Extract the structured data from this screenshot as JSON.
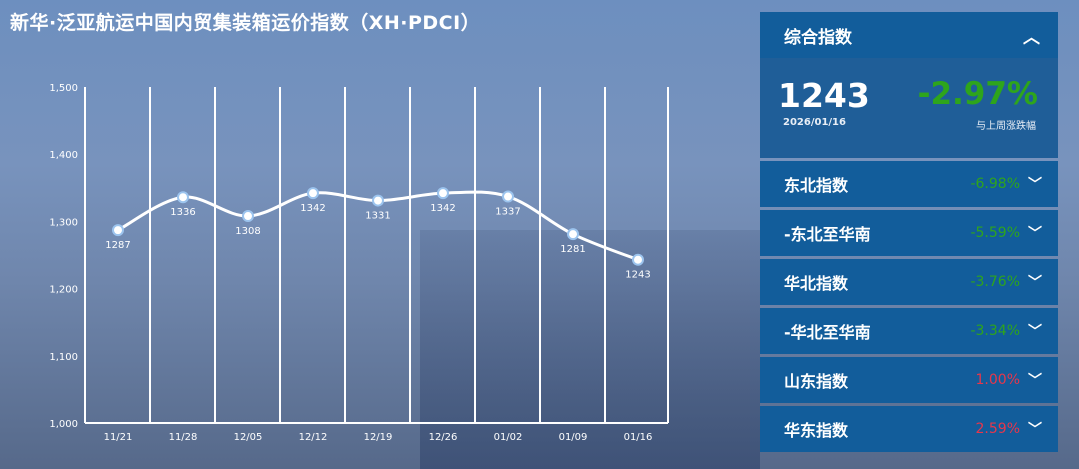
{
  "title": "新华·泛亚航运中国内贸集装箱运价指数（XH·PDCI）",
  "chart_data": {
    "type": "line",
    "categories": [
      "11/21",
      "11/28",
      "12/05",
      "12/12",
      "12/19",
      "12/26",
      "01/02",
      "01/09",
      "01/16"
    ],
    "values": [
      1287,
      1336,
      1308,
      1342,
      1331,
      1342,
      1337,
      1281,
      1243
    ],
    "yticks": [
      "1,000",
      "1,100",
      "1,200",
      "1,300",
      "1,400",
      "1,500"
    ],
    "ylim": [
      1000,
      1500
    ],
    "grid": "vertical",
    "smooth": true
  },
  "panel": {
    "header": "综合指数",
    "value": "1243",
    "date": "2026/01/16",
    "change": "-2.97%",
    "change_caption": "与上周涨跌幅",
    "rows": [
      {
        "label": "东北指数",
        "value": "-6.98%",
        "color": "#2ea51c"
      },
      {
        "label": "-东北至华南",
        "value": "-5.59%",
        "color": "#2ea51c"
      },
      {
        "label": "华北指数",
        "value": "-3.76%",
        "color": "#2ea51c"
      },
      {
        "label": "-华北至华南",
        "value": "-3.34%",
        "color": "#2ea51c"
      },
      {
        "label": "山东指数",
        "value": "1.00%",
        "color": "#e8364a"
      },
      {
        "label": "华东指数",
        "value": "2.59%",
        "color": "#e8364a"
      }
    ]
  },
  "colors": {
    "panel": "#125d9b",
    "up": "#e8364a",
    "down": "#2ea51c"
  }
}
